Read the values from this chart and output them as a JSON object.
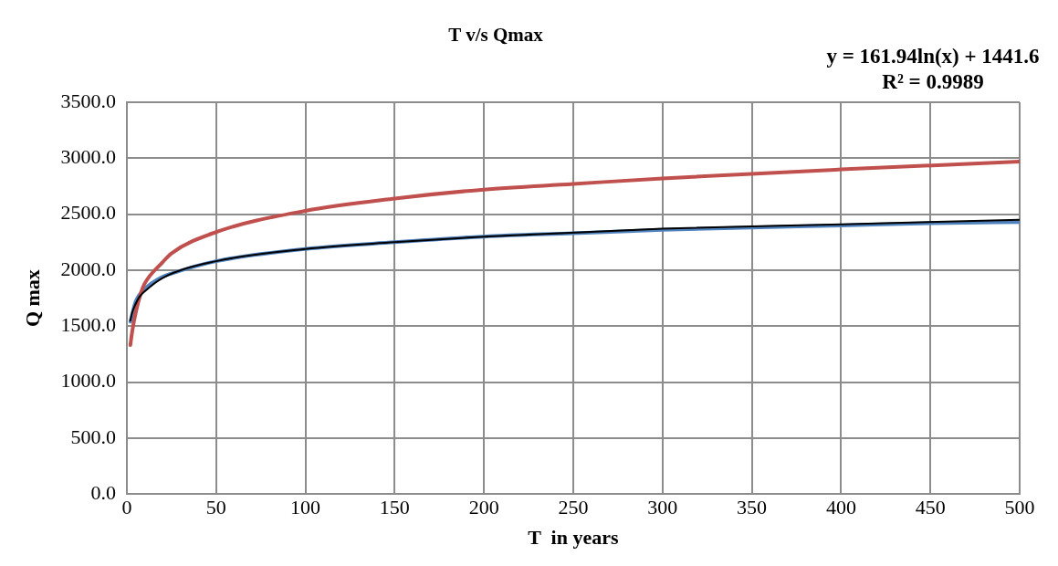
{
  "chart_data": {
    "type": "line",
    "title": "T v/s Qmax",
    "xlabel": "T  in years",
    "ylabel": "Q max",
    "annotations": [
      "y = 161.94ln(x) + 1441.6",
      "R² = 0.9989"
    ],
    "xlim": [
      0,
      500
    ],
    "xticks": [
      0,
      50,
      100,
      150,
      200,
      250,
      300,
      350,
      400,
      450,
      500
    ],
    "ylim": [
      0,
      3500
    ],
    "yticks": [
      {
        "value": 0,
        "label": "0.0"
      },
      {
        "value": 500,
        "label": "500.0"
      },
      {
        "value": 1000,
        "label": "1000.0"
      },
      {
        "value": 1500,
        "label": "1500.0"
      },
      {
        "value": 2000,
        "label": "2000.0"
      },
      {
        "value": 2500,
        "label": "2500.0"
      },
      {
        "value": 3000,
        "label": "3000.0"
      },
      {
        "value": 3500,
        "label": "3500.0"
      }
    ],
    "grid": true,
    "legend": false,
    "marker": "none",
    "line_style": "solid",
    "series": [
      {
        "color": "#4f81bd",
        "x": [
          2,
          5,
          10,
          20,
          25,
          50,
          100,
          150,
          200,
          250,
          300,
          350,
          400,
          450,
          500
        ],
        "values": [
          1540,
          1720,
          1830,
          1940,
          1970,
          2080,
          2190,
          2250,
          2300,
          2330,
          2360,
          2380,
          2400,
          2420,
          2430
        ]
      },
      {
        "color": "#c0504d",
        "x": [
          2,
          3,
          5,
          8,
          10,
          20,
          25,
          50,
          100,
          150,
          200,
          250,
          300,
          400,
          500
        ],
        "values": [
          1330,
          1450,
          1620,
          1800,
          1880,
          2070,
          2150,
          2340,
          2530,
          2640,
          2720,
          2770,
          2820,
          2900,
          2970
        ]
      },
      {
        "color": "#000000",
        "x": [
          2,
          3,
          5,
          7,
          10,
          20,
          50,
          100,
          150,
          200,
          300,
          400,
          500
        ],
        "values": [
          1550,
          1620,
          1700,
          1760,
          1810,
          1930,
          2080,
          2190,
          2250,
          2300,
          2370,
          2410,
          2450
        ]
      }
    ]
  }
}
